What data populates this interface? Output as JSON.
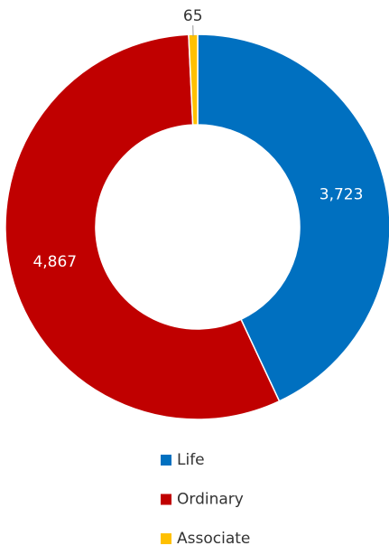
{
  "chart_data": {
    "type": "donut",
    "categories": [
      "Life",
      "Ordinary",
      "Associate"
    ],
    "values": [
      3723,
      4867,
      65
    ],
    "value_labels": [
      "3,723",
      "4,867",
      "65"
    ],
    "colors": [
      "#0070c0",
      "#c00000",
      "#ffc000"
    ]
  }
}
